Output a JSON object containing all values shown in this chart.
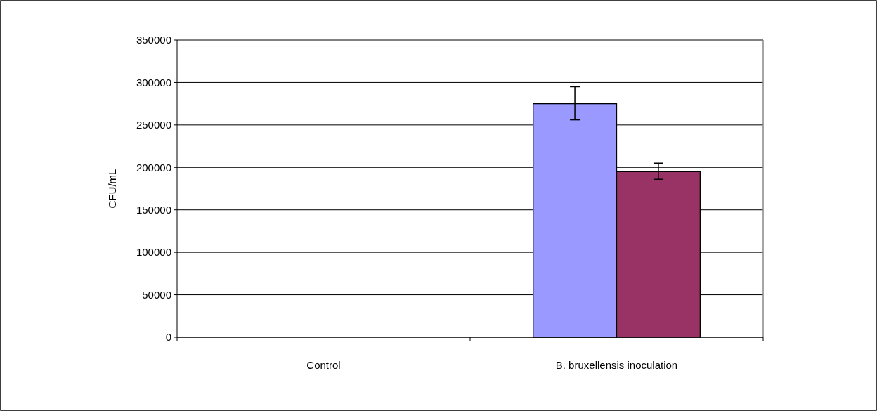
{
  "chart_data": {
    "type": "bar",
    "ylabel": "CFU/mL",
    "categories": [
      "Control",
      "B. bruxellensis inoculation"
    ],
    "series": [
      {
        "color": "#9999ff",
        "values": [
          0,
          275000
        ],
        "errors": [
          null,
          [
            256000,
            295000
          ]
        ]
      },
      {
        "color": "#993366",
        "values": [
          0,
          195000
        ],
        "errors": [
          null,
          [
            186000,
            205000
          ]
        ]
      }
    ],
    "ylim": [
      0,
      350000
    ],
    "yticks": [
      0,
      50000,
      100000,
      150000,
      200000,
      250000,
      300000,
      350000
    ],
    "grid": "y"
  }
}
